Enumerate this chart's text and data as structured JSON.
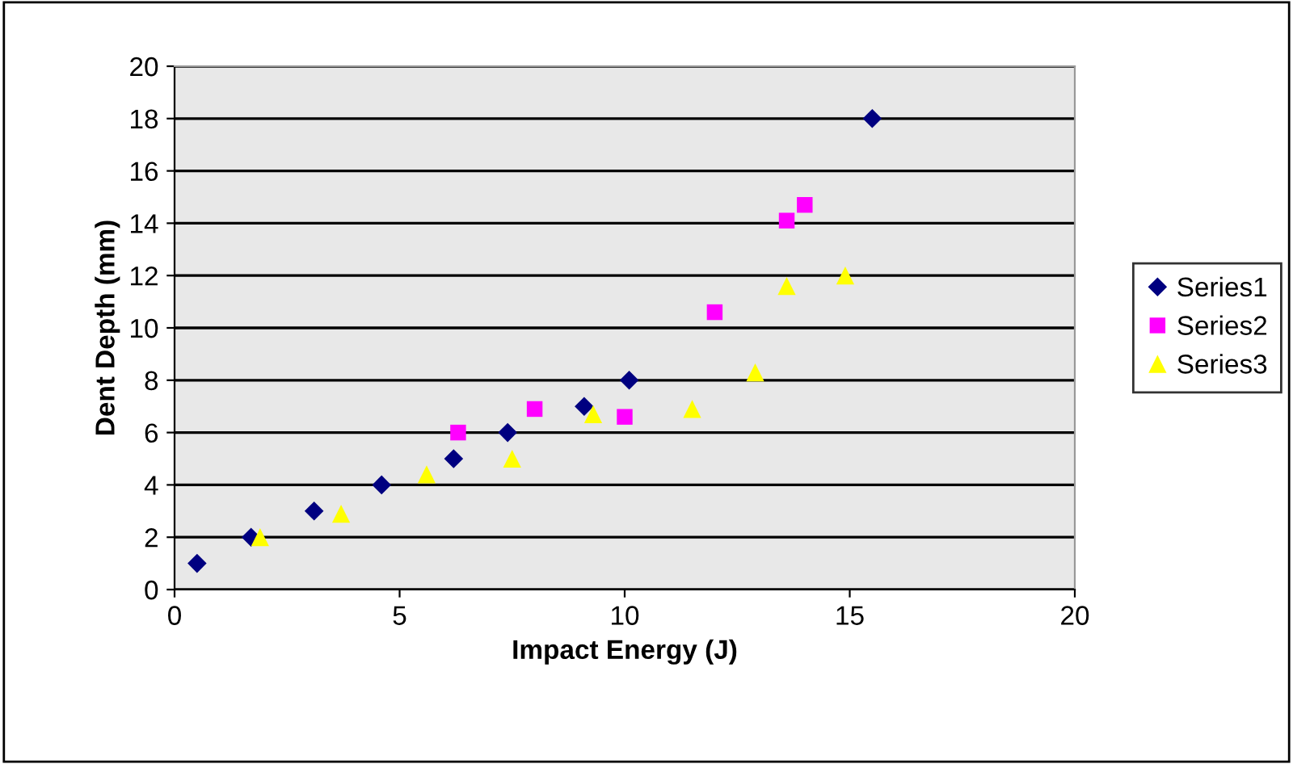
{
  "chart_data": {
    "type": "scatter",
    "xlabel": "Impact Energy (J)",
    "ylabel": "Dent Depth (mm)",
    "xlim": [
      0,
      20
    ],
    "xticks": [
      0,
      5,
      10,
      15,
      20
    ],
    "ylim": [
      0,
      20
    ],
    "yticks": [
      0,
      2,
      4,
      6,
      8,
      10,
      12,
      14,
      16,
      18,
      20
    ],
    "grid": "y",
    "legend": "right",
    "series": [
      {
        "name": "Series1",
        "color": "#000080",
        "marker": "diamond",
        "x": [
          0.5,
          1.7,
          3.1,
          4.6,
          6.2,
          7.4,
          9.1,
          10.1,
          15.5
        ],
        "values": [
          1,
          2,
          3,
          4,
          5,
          6,
          7,
          8,
          18
        ]
      },
      {
        "name": "Series2",
        "color": "#ff00ff",
        "marker": "square",
        "x": [
          6.3,
          8.0,
          10.0,
          12.0,
          13.6,
          14.0
        ],
        "values": [
          6,
          6.9,
          6.6,
          10.6,
          14.1,
          14.7
        ]
      },
      {
        "name": "Series3",
        "color": "#ffff00",
        "marker": "triangle",
        "x": [
          1.9,
          3.7,
          5.6,
          7.5,
          9.3,
          11.5,
          12.9,
          13.6,
          14.9
        ],
        "values": [
          2,
          2.9,
          4.4,
          5,
          6.7,
          6.9,
          8.3,
          11.6,
          12
        ]
      }
    ]
  }
}
